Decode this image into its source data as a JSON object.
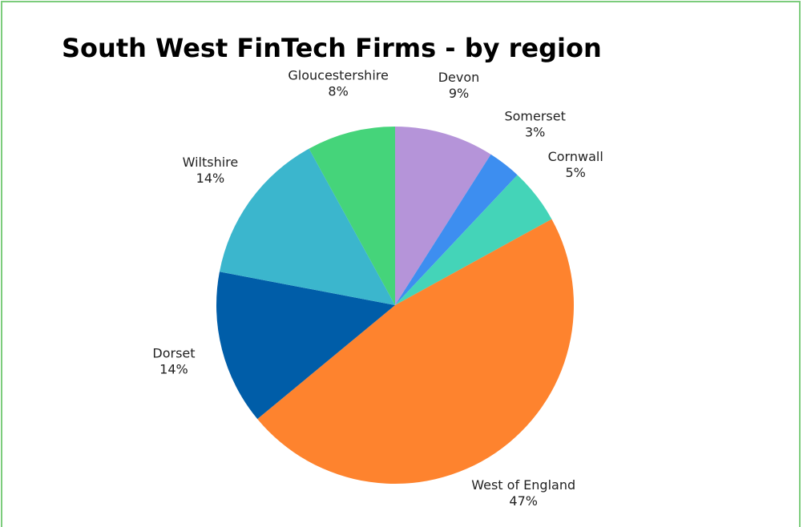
{
  "chart_data": {
    "type": "pie",
    "title": "South West FinTech Firms - by region",
    "categories": [
      "Devon",
      "Somerset",
      "Cornwall",
      "West of England",
      "Dorset",
      "Wiltshire",
      "Gloucestershire"
    ],
    "values": [
      9,
      3,
      5,
      47,
      14,
      14,
      8
    ],
    "value_labels": [
      "9%",
      "3%",
      "5%",
      "47%",
      "14%",
      "14%",
      "8%"
    ],
    "colors": [
      "#b594d9",
      "#3d8ef0",
      "#44d4b8",
      "#fe832e",
      "#005da8",
      "#3bb6cd",
      "#45d47a"
    ]
  }
}
